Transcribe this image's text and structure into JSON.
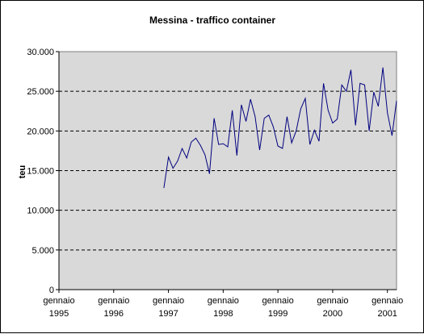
{
  "chart_data": {
    "type": "line",
    "title": "Messina - traffico container",
    "xlabel": "",
    "ylabel": "teu",
    "ylim": [
      0,
      30000
    ],
    "yticks": [
      {
        "value": 0,
        "label": "0"
      },
      {
        "value": 5000,
        "label": "5.000"
      },
      {
        "value": 10000,
        "label": "10.000"
      },
      {
        "value": 15000,
        "label": "15.000"
      },
      {
        "value": 20000,
        "label": "20.000"
      },
      {
        "value": 25000,
        "label": "25.000"
      },
      {
        "value": 30000,
        "label": "30.000"
      }
    ],
    "xlim": [
      "1995-01",
      "2001-03"
    ],
    "xticks": [
      {
        "value": "1995-01",
        "line1": "gennaio",
        "line2": "1995"
      },
      {
        "value": "1996-01",
        "line1": "gennaio",
        "line2": "1996"
      },
      {
        "value": "1997-01",
        "line1": "gennaio",
        "line2": "1997"
      },
      {
        "value": "1998-01",
        "line1": "gennaio",
        "line2": "1998"
      },
      {
        "value": "1999-01",
        "line1": "gennaio",
        "line2": "1999"
      },
      {
        "value": "2000-01",
        "line1": "gennaio",
        "line2": "2000"
      },
      {
        "value": "2001-01",
        "line1": "gennaio",
        "line2": "2001"
      }
    ],
    "grid": "horizontal dashed",
    "legend": "none",
    "colors": {
      "line": "#000080",
      "plot_bg": "#d9d9d9",
      "grid": "#000000"
    },
    "series": [
      {
        "x": [
          "1996-12",
          "1997-01",
          "1997-02",
          "1997-03",
          "1997-04",
          "1997-05",
          "1997-06",
          "1997-07",
          "1997-08",
          "1997-09",
          "1997-10",
          "1997-11",
          "1997-12",
          "1998-01",
          "1998-02",
          "1998-03",
          "1998-04",
          "1998-05",
          "1998-06",
          "1998-07",
          "1998-08",
          "1998-09",
          "1998-10",
          "1998-11",
          "1998-12",
          "1999-01",
          "1999-02",
          "1999-03",
          "1999-04",
          "1999-05",
          "1999-06",
          "1999-07",
          "1999-08",
          "1999-09",
          "1999-10",
          "1999-11",
          "1999-12",
          "2000-01",
          "2000-02",
          "2000-03",
          "2000-04",
          "2000-05",
          "2000-06",
          "2000-07",
          "2000-08",
          "2000-09",
          "2000-10",
          "2000-11",
          "2000-12",
          "2001-01",
          "2001-02",
          "2001-03"
        ],
        "values": [
          12800,
          16700,
          15300,
          16200,
          17800,
          16600,
          18600,
          19100,
          18200,
          17000,
          14600,
          21600,
          18300,
          18400,
          18000,
          22600,
          16900,
          23300,
          21200,
          24000,
          21800,
          17600,
          21600,
          22000,
          20500,
          18100,
          17800,
          21800,
          18500,
          20000,
          22800,
          24100,
          18300,
          20100,
          18700,
          26000,
          22600,
          21000,
          21500,
          25800,
          25000,
          27700,
          20700,
          26000,
          25800,
          20000,
          24900,
          23100,
          28000,
          22300,
          19400,
          23800
        ]
      }
    ]
  }
}
